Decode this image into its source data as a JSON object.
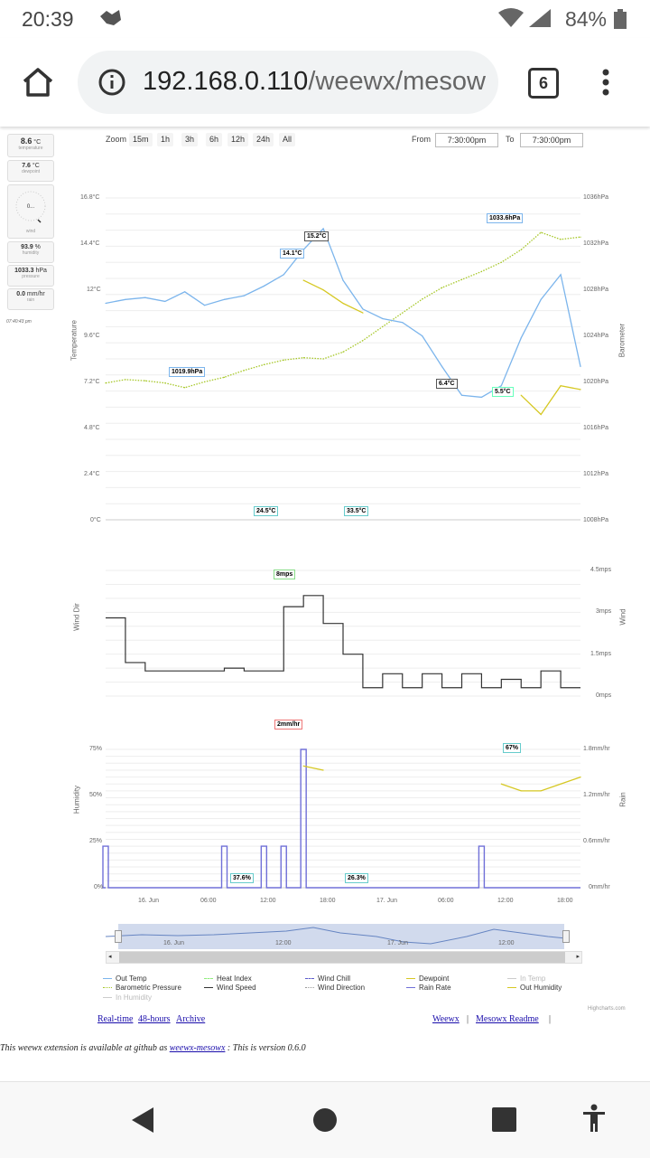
{
  "status": {
    "time": "20:39",
    "battery": "84%"
  },
  "browser": {
    "url_main": "192.168.0.110",
    "url_path": "/weewx/mesow",
    "tab_count": "6"
  },
  "sidebar": [
    {
      "value": "8.6",
      "unit": "°C",
      "label": "temperature"
    },
    {
      "value": "7.6",
      "unit": "°C",
      "label": "dewpoint"
    },
    {
      "value": "0...",
      "unit": "",
      "label": "wind"
    },
    {
      "value": "93.9",
      "unit": "%",
      "label": "humidity"
    },
    {
      "value": "1033.3",
      "unit": "hPa",
      "label": "pressure"
    },
    {
      "value": "0.0",
      "unit": "mm/hr",
      "label": "rain"
    }
  ],
  "sidebar_time": "07:40:43 pm",
  "zoom": {
    "label": "Zoom",
    "options": [
      "15m",
      "1h",
      "3h",
      "6h",
      "12h",
      "24h",
      "All"
    ],
    "from_label": "From",
    "from_value": "7:30:00pm",
    "to_label": "To",
    "to_value": "7:30:00pm"
  },
  "chart_data": [
    {
      "type": "line",
      "title": "",
      "ylabel": "Temperature",
      "y2label": "Barometer",
      "yticks": [
        "16.8°C",
        "14.4°C",
        "12°C",
        "9.6°C",
        "7.2°C",
        "4.8°C",
        "2.4°C",
        "0°C"
      ],
      "y2ticks": [
        "1036hPa",
        "1032hPa",
        "1028hPa",
        "1024hPa",
        "1020hPa",
        "1016hPa",
        "1012hPa",
        "1008hPa"
      ],
      "ylim": [
        0,
        16.8
      ],
      "y2lim": [
        1008,
        1036
      ],
      "x": [
        0,
        2,
        4,
        6,
        8,
        10,
        12,
        14,
        16,
        18,
        20,
        22,
        24,
        26,
        28,
        30,
        32,
        34,
        36,
        38,
        40,
        42,
        44,
        46,
        48
      ],
      "series": [
        {
          "name": "Out Temp",
          "color": "#7cb5ec",
          "values": [
            11.3,
            11.5,
            11.6,
            11.4,
            11.9,
            11.2,
            11.5,
            11.7,
            12.2,
            12.8,
            14.1,
            15.2,
            12.5,
            11.0,
            10.5,
            10.3,
            9.6,
            8.0,
            6.5,
            6.4,
            7.0,
            9.5,
            11.5,
            12.8,
            8.0
          ]
        },
        {
          "name": "Dewpoint",
          "color": "#d6c823",
          "values": [
            null,
            null,
            null,
            null,
            null,
            null,
            null,
            null,
            null,
            null,
            12.5,
            12.0,
            11.3,
            10.8,
            null,
            null,
            null,
            null,
            null,
            null,
            null,
            6.5,
            5.5,
            7.0,
            6.8
          ]
        },
        {
          "name": "Barometric Pressure",
          "color": "#a6c727",
          "values": [
            1019.9,
            1020.2,
            1020.1,
            1019.9,
            1019.5,
            1020.0,
            1020.4,
            1021.0,
            1021.5,
            1021.9,
            1022.1,
            1022.0,
            1022.6,
            1023.6,
            1024.8,
            1026.0,
            1027.2,
            1028.2,
            1028.9,
            1029.6,
            1030.4,
            1031.5,
            1033.0,
            1032.4,
            1032.6
          ]
        }
      ],
      "flags": [
        "1019.9hPa",
        "14.1°C",
        "15.2°C",
        "1033.6hPa",
        "6.4°C",
        "5.5°C"
      ]
    },
    {
      "type": "line",
      "ylabel": "Wind Dir",
      "y2label": "Wind",
      "y2ticks": [
        "4.5mps",
        "3mps",
        "1.5mps",
        "0mps"
      ],
      "y2lim": [
        0,
        4.5
      ],
      "series": [
        {
          "name": "Wind Speed",
          "color": "#333333",
          "values": [
            2.8,
            1.2,
            0.9,
            0.9,
            0.9,
            0.9,
            1.0,
            0.9,
            0.9,
            3.2,
            3.6,
            2.6,
            1.5,
            0.3,
            0.8,
            0.3,
            0.8,
            0.3,
            0.8,
            0.3,
            0.6,
            0.3,
            0.9,
            0.3,
            0.3
          ]
        }
      ],
      "flags": [
        "24.5°C",
        "33.5°C",
        "8mps"
      ]
    },
    {
      "type": "line",
      "ylabel": "Humidity",
      "y2label": "Rain",
      "yticks": [
        "75%",
        "50%",
        "25%",
        "0%"
      ],
      "ylim": [
        0,
        100
      ],
      "y2ticks": [
        "1.8mm/hr",
        "1.2mm/hr",
        "0.6mm/hr",
        "0mm/hr"
      ],
      "y2lim": [
        0,
        2
      ],
      "xticks": [
        "16. Jun",
        "06:00",
        "12:00",
        "18:00",
        "17. Jun",
        "06:00",
        "12:00",
        "18:00"
      ],
      "series": [
        {
          "name": "Rain Rate",
          "color": "#7070d8",
          "values": [
            0.6,
            0,
            0,
            0,
            0,
            0,
            0.6,
            0,
            0.6,
            0.6,
            2.0,
            0,
            0,
            0,
            0,
            0,
            0,
            0,
            0,
            0.6,
            0,
            0,
            0,
            0,
            0
          ]
        },
        {
          "name": "Out Humidity",
          "color": "#d6c823",
          "values": [
            null,
            null,
            null,
            null,
            null,
            null,
            null,
            null,
            null,
            null,
            88,
            85,
            null,
            null,
            null,
            null,
            null,
            null,
            null,
            null,
            75,
            70,
            70,
            75,
            80
          ]
        }
      ],
      "flags": [
        "2mm/hr",
        "67%",
        "37.6%",
        "26.3%"
      ]
    }
  ],
  "navigator": {
    "labels": [
      "16. Jun",
      "12:00",
      "17. Jun",
      "12:00"
    ]
  },
  "legend": [
    {
      "label": "Out Temp",
      "color": "#7cb5ec",
      "dash": "solid"
    },
    {
      "label": "Heat Index",
      "color": "#90ed7d",
      "dash": "dashed"
    },
    {
      "label": "Wind Chill",
      "color": "#5c5ccc",
      "dash": "dashed"
    },
    {
      "label": "Dewpoint",
      "color": "#d6c823",
      "dash": "solid"
    },
    {
      "label": "In Temp",
      "color": "#cccccc",
      "dash": "solid"
    },
    {
      "label": "Barometric Pressure",
      "color": "#a6c727",
      "dash": "dotted"
    },
    {
      "label": "Wind Speed",
      "color": "#333333",
      "dash": "solid"
    },
    {
      "label": "Wind Direction",
      "color": "#999999",
      "dash": "dotted"
    },
    {
      "label": "Rain Rate",
      "color": "#7070d8",
      "dash": "solid"
    },
    {
      "label": "Out Humidity",
      "color": "#d6c823",
      "dash": "solid"
    },
    {
      "label": "In Humidity",
      "color": "#cccccc",
      "dash": "solid"
    }
  ],
  "credits": "Highcharts.com",
  "links_left": [
    "Real-time",
    "48-hours",
    "Archive"
  ],
  "links_right": [
    "Weewx",
    "|",
    "Mesowx Readme",
    "|"
  ],
  "footer_prefix": "This weewx extension is available at github as ",
  "footer_link": "weewx-mesowx",
  "footer_suffix": " : This is version 0.6.0"
}
